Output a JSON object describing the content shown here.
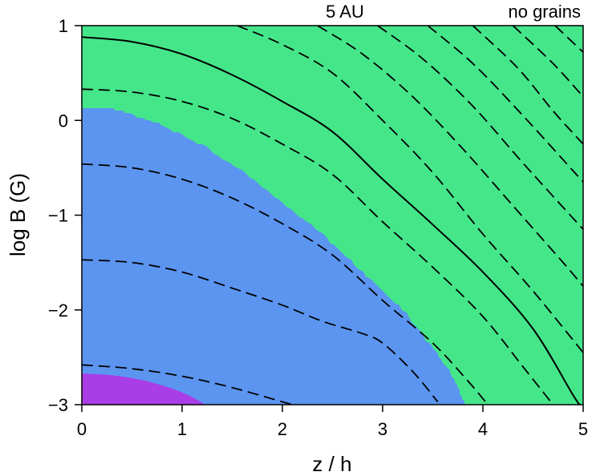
{
  "chart_data": {
    "type": "contour",
    "title": "",
    "annotations": [
      "5 AU",
      "no grains"
    ],
    "xlabel": "z / h",
    "ylabel": "log B (G)",
    "xlim": [
      0,
      5
    ],
    "ylim": [
      -3,
      1
    ],
    "x_ticks": [
      0,
      1,
      2,
      3,
      4,
      5
    ],
    "x_tick_labels": [
      "0",
      "1",
      "2",
      "3",
      "4",
      "5"
    ],
    "y_ticks": [
      1,
      0,
      -1,
      -2,
      -3
    ],
    "y_tick_labels": [
      "1",
      "0",
      "−1",
      "−2",
      "−3"
    ],
    "grid": false,
    "legend": "none",
    "regions": [
      {
        "color": "#45e68a",
        "boundary": "rect",
        "polygon": [
          [
            0,
            -3
          ],
          [
            5,
            -3
          ],
          [
            5,
            1
          ],
          [
            0,
            1
          ]
        ]
      },
      {
        "color": "#5b95f0",
        "boundary": "irregular",
        "polygon": [
          [
            0,
            -3
          ],
          [
            0,
            0.14
          ],
          [
            0.24,
            0.14
          ],
          [
            0.4,
            0.1
          ],
          [
            0.8,
            -0.05
          ],
          [
            1.2,
            -0.26
          ],
          [
            1.6,
            -0.53
          ],
          [
            2.0,
            -0.87
          ],
          [
            2.4,
            -1.2
          ],
          [
            2.8,
            -1.6
          ],
          [
            3.2,
            -2.0
          ],
          [
            3.5,
            -2.4
          ],
          [
            3.7,
            -2.7
          ],
          [
            3.82,
            -3.0
          ]
        ]
      },
      {
        "color": "#a93ee6",
        "boundary": "curved",
        "polygon": [
          [
            0,
            -3
          ],
          [
            0,
            -2.67
          ],
          [
            0.3,
            -2.69
          ],
          [
            0.6,
            -2.74
          ],
          [
            0.9,
            -2.83
          ],
          [
            1.1,
            -2.92
          ],
          [
            1.23,
            -3.0
          ]
        ]
      }
    ],
    "contours": [
      {
        "style": "solid",
        "points": [
          [
            0,
            0.88
          ],
          [
            0.5,
            0.83
          ],
          [
            1.0,
            0.7
          ],
          [
            1.5,
            0.48
          ],
          [
            2.0,
            0.2
          ],
          [
            2.5,
            -0.12
          ],
          [
            3.0,
            -0.62
          ],
          [
            3.5,
            -1.1
          ],
          [
            4.0,
            -1.6
          ],
          [
            4.5,
            -2.2
          ],
          [
            4.9,
            -2.9
          ],
          [
            4.97,
            -3.0
          ]
        ]
      },
      {
        "style": "dashed",
        "points": [
          [
            0,
            0.33
          ],
          [
            0.5,
            0.3
          ],
          [
            1.0,
            0.2
          ],
          [
            1.5,
            0.02
          ],
          [
            2.0,
            -0.25
          ],
          [
            2.5,
            -0.57
          ],
          [
            3.0,
            -1.07
          ],
          [
            3.5,
            -1.55
          ],
          [
            4.0,
            -2.07
          ],
          [
            4.4,
            -2.6
          ],
          [
            4.7,
            -3.0
          ]
        ]
      },
      {
        "style": "dashed",
        "points": [
          [
            0,
            -0.46
          ],
          [
            0.5,
            -0.5
          ],
          [
            1.0,
            -0.62
          ],
          [
            1.5,
            -0.82
          ],
          [
            2.0,
            -1.09
          ],
          [
            2.5,
            -1.42
          ],
          [
            3.0,
            -1.9
          ],
          [
            3.5,
            -2.35
          ],
          [
            3.85,
            -2.75
          ],
          [
            4.05,
            -3.0
          ]
        ]
      },
      {
        "style": "dashed",
        "points": [
          [
            0,
            -1.47
          ],
          [
            0.5,
            -1.5
          ],
          [
            1.0,
            -1.6
          ],
          [
            1.5,
            -1.77
          ],
          [
            2.0,
            -1.95
          ],
          [
            2.4,
            -2.12
          ],
          [
            2.8,
            -2.25
          ],
          [
            3.0,
            -2.35
          ],
          [
            3.3,
            -2.65
          ],
          [
            3.55,
            -2.97
          ]
        ]
      },
      {
        "style": "dashed",
        "points": [
          [
            0,
            -2.58
          ],
          [
            0.5,
            -2.62
          ],
          [
            1.0,
            -2.7
          ],
          [
            1.5,
            -2.82
          ],
          [
            2.1,
            -3.0
          ]
        ]
      },
      {
        "style": "dashed",
        "points": [
          [
            1.55,
            1.0
          ],
          [
            2.0,
            0.8
          ],
          [
            2.5,
            0.5
          ],
          [
            3.0,
            0.0
          ],
          [
            3.5,
            -0.55
          ],
          [
            4.0,
            -1.2
          ],
          [
            4.5,
            -1.8
          ],
          [
            5.0,
            -2.45
          ]
        ]
      },
      {
        "style": "dashed",
        "points": [
          [
            2.35,
            1.0
          ],
          [
            2.8,
            0.7
          ],
          [
            3.3,
            0.25
          ],
          [
            3.8,
            -0.3
          ],
          [
            4.3,
            -0.9
          ],
          [
            4.8,
            -1.5
          ],
          [
            5.0,
            -1.75
          ]
        ]
      },
      {
        "style": "dashed",
        "points": [
          [
            2.95,
            1.0
          ],
          [
            3.4,
            0.65
          ],
          [
            3.9,
            0.15
          ],
          [
            4.4,
            -0.45
          ],
          [
            5.0,
            -1.15
          ]
        ]
      },
      {
        "style": "dashed",
        "points": [
          [
            3.45,
            1.0
          ],
          [
            3.9,
            0.6
          ],
          [
            4.4,
            0.05
          ],
          [
            5.0,
            -0.65
          ]
        ]
      },
      {
        "style": "dashed",
        "points": [
          [
            3.9,
            1.0
          ],
          [
            4.35,
            0.55
          ],
          [
            4.7,
            0.1
          ],
          [
            5.0,
            -0.25
          ]
        ]
      },
      {
        "style": "dashed",
        "points": [
          [
            4.3,
            1.0
          ],
          [
            4.7,
            0.6
          ],
          [
            5.0,
            0.25
          ]
        ]
      },
      {
        "style": "dashed",
        "points": [
          [
            4.72,
            1.0
          ],
          [
            5.0,
            0.72
          ]
        ]
      }
    ]
  }
}
